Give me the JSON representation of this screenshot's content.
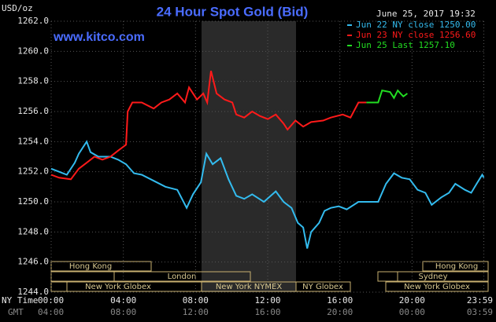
{
  "chart_data": {
    "type": "line",
    "title": "24 Hour Spot Gold (Bid)",
    "y_label": "USD/oz",
    "timestamp": "June 25, 2017 19:32",
    "source": "www.kitco.com",
    "x_row_label": "NY Time",
    "x2_row_label": "GMT",
    "xlim": [
      0,
      24
    ],
    "xticks": [
      {
        "value": 0,
        "label": "00:00"
      },
      {
        "value": 4,
        "label": "04:00"
      },
      {
        "value": 8,
        "label": "08:00"
      },
      {
        "value": 12,
        "label": "12:00"
      },
      {
        "value": 16,
        "label": "16:00"
      },
      {
        "value": 20,
        "label": "20:00"
      },
      {
        "value": 23.98,
        "label": "23:59"
      }
    ],
    "gmt_labels": [
      "04:00",
      "08:00",
      "12:00",
      "16:00",
      "20:00",
      "00:00",
      "03:59"
    ],
    "ylim": [
      1244,
      1262
    ],
    "yticks": [
      {
        "value": 1244,
        "label": "1244.0"
      },
      {
        "value": 1246,
        "label": "1246.0"
      },
      {
        "value": 1248,
        "label": "1248.0"
      },
      {
        "value": 1250,
        "label": "1250.0"
      },
      {
        "value": 1252,
        "label": "1252.0"
      },
      {
        "value": 1254,
        "label": "1254.0"
      },
      {
        "value": 1256,
        "label": "1256.0"
      },
      {
        "value": 1258,
        "label": "1258.0"
      },
      {
        "value": 1260,
        "label": "1260.0"
      },
      {
        "value": 1262,
        "label": "1262.0"
      }
    ],
    "grid": true,
    "sessions": [
      "Hong Kong",
      "London",
      "New York Globex",
      "New York NYMEX",
      "NY Globex",
      "New York Globex",
      "Sydney",
      "Hong Kong"
    ],
    "series": [
      {
        "name": "Jun 22 NY close 1250.00",
        "color": "#33bbee",
        "x": [
          0,
          0.44,
          0.87,
          1.31,
          1.53,
          1.97,
          2.18,
          2.62,
          3.28,
          3.71,
          4.15,
          4.59,
          5.02,
          5.68,
          6.33,
          6.99,
          7.51,
          7.86,
          8.3,
          8.6,
          8.95,
          9.39,
          9.83,
          10.26,
          10.7,
          11.14,
          11.79,
          12.45,
          12.88,
          13.32,
          13.67,
          13.97,
          14.19,
          14.41,
          14.85,
          15.15,
          15.5,
          15.94,
          16.38,
          17.03,
          18.12,
          18.56,
          19.0,
          19.43,
          19.87,
          20.31,
          20.74,
          21.09,
          21.62,
          22.05,
          22.4,
          22.93,
          23.28,
          23.58,
          23.89,
          23.98
        ],
        "values": [
          1252.2,
          1252.0,
          1251.8,
          1252.6,
          1253.2,
          1254.0,
          1253.3,
          1253.0,
          1253.0,
          1252.8,
          1252.5,
          1251.9,
          1251.8,
          1251.4,
          1251.0,
          1250.8,
          1249.6,
          1250.5,
          1251.3,
          1253.2,
          1252.5,
          1252.9,
          1251.5,
          1250.4,
          1250.2,
          1250.5,
          1250.0,
          1250.7,
          1250.0,
          1249.6,
          1248.6,
          1248.3,
          1246.9,
          1248.0,
          1248.6,
          1249.4,
          1249.6,
          1249.7,
          1249.5,
          1250.0,
          1250.0,
          1251.2,
          1251.9,
          1251.6,
          1251.5,
          1250.8,
          1250.6,
          1249.8,
          1250.3,
          1250.6,
          1251.2,
          1250.8,
          1250.6,
          1251.2,
          1251.8,
          1251.6
        ]
      },
      {
        "name": "Jun 23 NY close 1256.60",
        "color": "#ff1a1a",
        "x": [
          0,
          0.44,
          1.09,
          1.53,
          1.97,
          2.4,
          2.84,
          3.28,
          3.71,
          3.93,
          4.15,
          4.24,
          4.5,
          5.02,
          5.68,
          6.11,
          6.55,
          6.99,
          7.42,
          7.64,
          8.08,
          8.43,
          8.65,
          8.86,
          9.17,
          9.61,
          10.04,
          10.26,
          10.7,
          11.14,
          11.57,
          12.01,
          12.45,
          12.88,
          13.1,
          13.54,
          13.97,
          14.41,
          15.07,
          15.5,
          16.16,
          16.59,
          17.03,
          17.47
        ],
        "values": [
          1251.8,
          1251.6,
          1251.5,
          1252.2,
          1252.6,
          1253.0,
          1252.8,
          1253.0,
          1253.4,
          1253.6,
          1253.8,
          1256.0,
          1256.6,
          1256.6,
          1256.2,
          1256.6,
          1256.8,
          1257.2,
          1256.6,
          1257.6,
          1256.8,
          1257.2,
          1256.6,
          1258.7,
          1257.2,
          1256.8,
          1256.6,
          1255.8,
          1255.6,
          1256.0,
          1255.7,
          1255.5,
          1255.8,
          1255.2,
          1254.8,
          1255.4,
          1255.0,
          1255.3,
          1255.4,
          1255.6,
          1255.8,
          1255.6,
          1256.6,
          1256.6
        ]
      },
      {
        "name": "Jun 25 Last 1257.10",
        "color": "#22dd22",
        "x": [
          17.47,
          18.12,
          18.34,
          18.78,
          19.0,
          19.21,
          19.52,
          19.74
        ],
        "values": [
          1256.6,
          1256.6,
          1257.4,
          1257.3,
          1256.9,
          1257.4,
          1257.0,
          1257.2
        ]
      }
    ]
  }
}
